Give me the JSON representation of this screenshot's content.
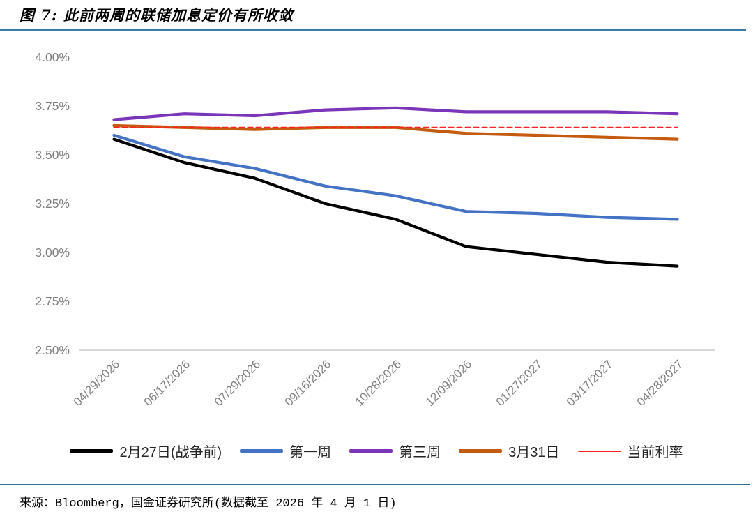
{
  "title": "图 7: 此前两周的联储加息定价有所收敛",
  "source": "来源：Bloomberg，国金证券研究所(数据截至 2026 年 4 月 1 日)",
  "colors": {
    "title_rule": "#3A7CA8",
    "footer_rule": "#2E7096",
    "axis_text": "#808080",
    "axis_line": "#CBCBCB"
  },
  "chart_data": {
    "type": "line",
    "title": "图 7: 此前两周的联储加息定价有所收敛",
    "categories": [
      "04/29/2026",
      "06/17/2026",
      "07/29/2026",
      "09/16/2026",
      "10/28/2026",
      "12/09/2026",
      "01/27/2027",
      "03/17/2027",
      "04/28/2027"
    ],
    "series": [
      {
        "name": "2月27日(战争前)",
        "color": "#000000",
        "style": "solid",
        "values": [
          3.58,
          3.46,
          3.38,
          3.25,
          3.17,
          3.03,
          2.99,
          2.95,
          2.93
        ]
      },
      {
        "name": "第一周",
        "color": "#4472C4",
        "style": "solid",
        "values": [
          3.6,
          3.49,
          3.43,
          3.34,
          3.29,
          3.21,
          3.2,
          3.18,
          3.17
        ]
      },
      {
        "name": "第三周",
        "color": "#7A35B8",
        "style": "solid",
        "values": [
          3.68,
          3.71,
          3.7,
          3.73,
          3.74,
          3.72,
          3.72,
          3.72,
          3.71
        ]
      },
      {
        "name": "3月31日",
        "color": "#C55A11",
        "style": "solid",
        "values": [
          3.65,
          3.64,
          3.63,
          3.64,
          3.64,
          3.61,
          3.6,
          3.59,
          3.58
        ]
      },
      {
        "name": "当前利率",
        "color": "#FF2222",
        "style": "dashed",
        "values": [
          3.64,
          3.64,
          3.64,
          3.64,
          3.64,
          3.64,
          3.64,
          3.64,
          3.64
        ]
      }
    ],
    "xlabel": "",
    "ylabel": "",
    "ylim": [
      2.5,
      4.0
    ],
    "ytick_labels": [
      "4.00%",
      "3.75%",
      "3.50%",
      "3.25%",
      "3.00%",
      "2.75%",
      "2.50%"
    ],
    "ytick_values": [
      4.0,
      3.75,
      3.5,
      3.25,
      3.0,
      2.75,
      2.5
    ],
    "grid": false,
    "legend_position": "bottom"
  }
}
